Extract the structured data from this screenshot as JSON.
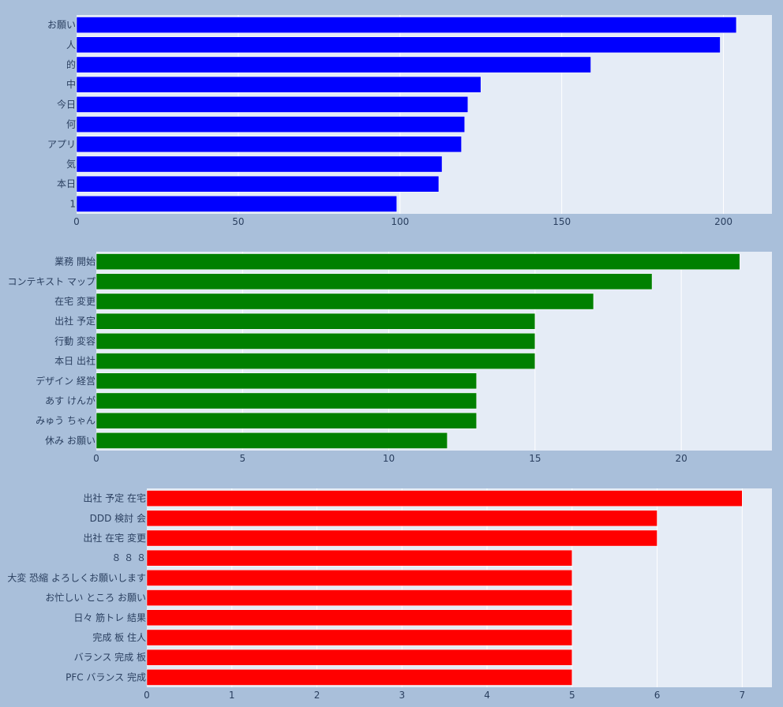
{
  "chart_data": [
    {
      "type": "bar",
      "orientation": "horizontal",
      "color": "#0000ff",
      "categories": [
        "お願い",
        "人",
        "的",
        "中",
        "今日",
        "何",
        "アプリ",
        "気",
        "本日",
        "1"
      ],
      "values": [
        204,
        199,
        159,
        125,
        121,
        120,
        119,
        113,
        112,
        99
      ],
      "xlim": [
        0,
        215
      ],
      "xticks": [
        0,
        50,
        100,
        150,
        200
      ],
      "grid": true
    },
    {
      "type": "bar",
      "orientation": "horizontal",
      "color": "#008000",
      "categories": [
        "業務 開始",
        "コンテキスト マップ",
        "在宅 変更",
        "出社 予定",
        "行動 変容",
        "本日 出社",
        "デザイン 経営",
        "あす けんが",
        "みゅう ちゃん",
        "休み お願い"
      ],
      "values": [
        22,
        19,
        17,
        15,
        15,
        15,
        13,
        13,
        13,
        12
      ],
      "xlim": [
        0,
        23.1
      ],
      "xticks": [
        0,
        5,
        10,
        15,
        20
      ],
      "grid": true
    },
    {
      "type": "bar",
      "orientation": "horizontal",
      "color": "#ff0000",
      "categories": [
        "出社 予定 在宅",
        "DDD 検討 会",
        "出社 在宅 変更",
        "８ ８ ８",
        "大変 恐縮 よろしくお願いします",
        "お忙しい ところ お願い",
        "日々 筋トレ 結果",
        "完成 板 住人",
        "バランス 完成 板",
        "PFC バランス 完成"
      ],
      "values": [
        7,
        6,
        6,
        5,
        5,
        5,
        5,
        5,
        5,
        5
      ],
      "xlim": [
        0,
        7.35
      ],
      "xticks": [
        0,
        1,
        2,
        3,
        4,
        5,
        6,
        7
      ],
      "grid": true
    }
  ]
}
